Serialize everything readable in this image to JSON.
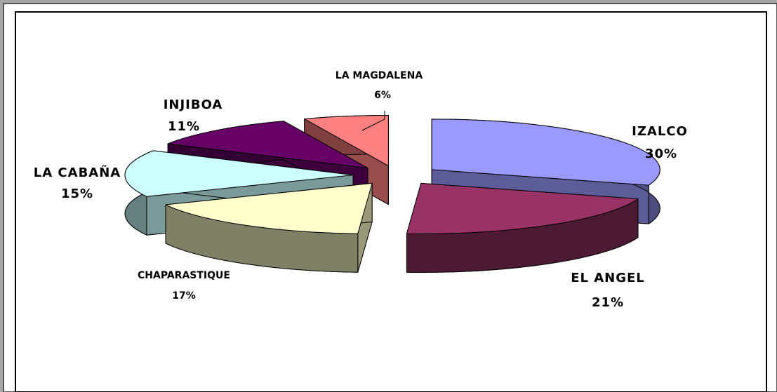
{
  "chart_data": {
    "type": "pie",
    "categories": [
      "IZALCO",
      "EL ANGEL",
      "CHAPARASTIQUE",
      "LA CABAÑA",
      "INJIBOA",
      "LA MAGDALENA"
    ],
    "values": [
      30,
      21,
      17,
      15,
      11,
      6
    ],
    "value_labels": [
      "30%",
      "21%",
      "17%",
      "15%",
      "11%",
      "6%"
    ],
    "colors": [
      "#9999ff",
      "#993366",
      "#ffffcc",
      "#ccffff",
      "#660066",
      "#ff8080"
    ]
  }
}
